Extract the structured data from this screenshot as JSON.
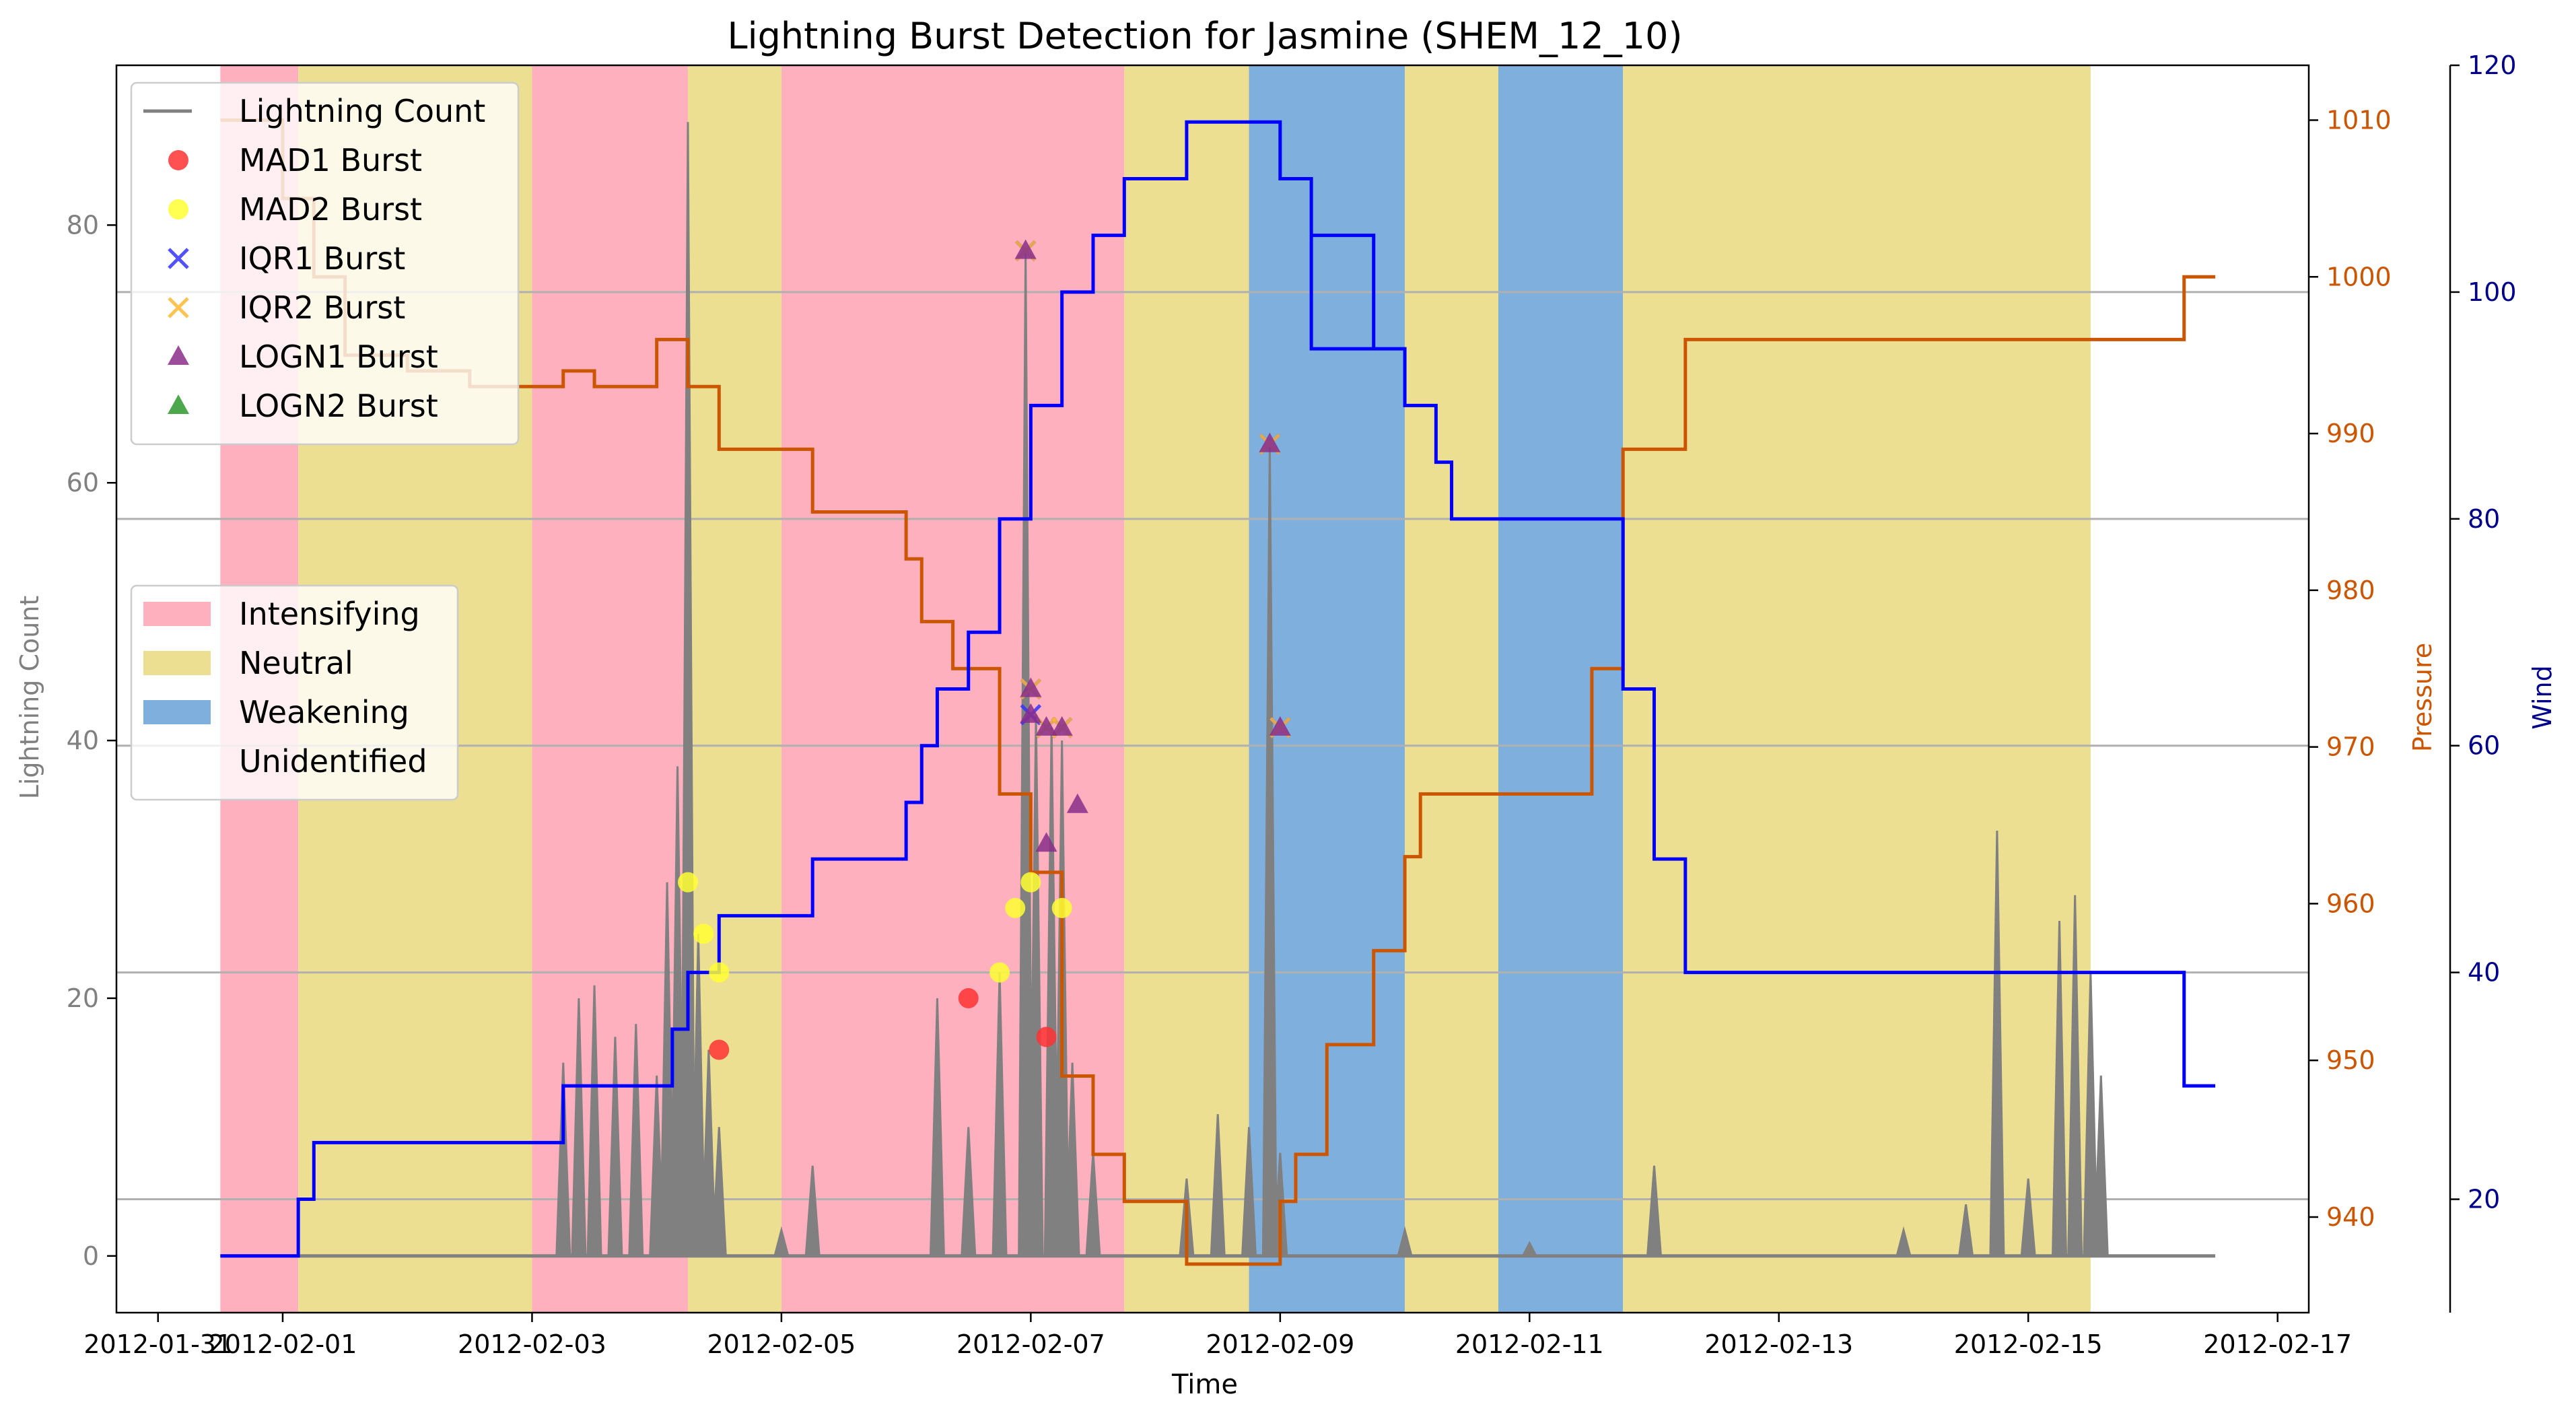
{
  "chart_data": {
    "type": "line",
    "title": "Lightning Burst Detection for Jasmine (SHEM_12_10)",
    "xlabel": "Time",
    "ylabel": "Lightning Count",
    "ylabel_right1": "Pressure",
    "ylabel_right2": "Wind",
    "x_range": [
      "2012-01-30T16:00",
      "2012-02-17T06:00"
    ],
    "x_ticks": [
      "2012-01-31",
      "2012-02-01",
      "2012-02-03",
      "2012-02-05",
      "2012-02-07",
      "2012-02-09",
      "2012-02-11",
      "2012-02-13",
      "2012-02-15",
      "2012-02-17"
    ],
    "x_tick_labels": [
      "2012-01-31",
      "2012-02-01",
      "2012-02-03",
      "2012-02-05",
      "2012-02-07",
      "2012-02-09",
      "2012-02-11",
      "2012-02-13",
      "2012-02-15",
      "2012-02-17"
    ],
    "ylim_left": [
      -4.4,
      92.4
    ],
    "yticks_left": [
      0,
      20,
      40,
      60,
      80
    ],
    "ylim_pressure": [
      933.9,
      1013.5
    ],
    "yticks_pressure": [
      940,
      950,
      960,
      970,
      980,
      990,
      1000,
      1010
    ],
    "ylim_wind": [
      10,
      120
    ],
    "yticks_wind": [
      20,
      40,
      60,
      80,
      100,
      120
    ],
    "colors": {
      "lightning": "#808080",
      "pressure": "#cc5500",
      "wind": "#0000ff",
      "intensifying": "#ffb0bf",
      "neutral": "#eddf92",
      "weakening": "#7fb0dd",
      "mad1": "#ff3333",
      "mad2": "#ffff33",
      "iqr1": "#3333ff",
      "iqr2": "#ffb833",
      "logn1": "#8a2e8a",
      "logn2": "#2e992e",
      "left_axis_text": "#808080",
      "pressure_axis_text": "#cc5500",
      "wind_axis_text": "#00008b",
      "grid": "#b0b0b0"
    },
    "legend_top": {
      "placement": "upper-left",
      "entries": [
        {
          "label": "Lightning Count",
          "marker": "line",
          "color_key": "lightning"
        },
        {
          "label": "MAD1 Burst",
          "marker": "circle",
          "color_key": "mad1"
        },
        {
          "label": "MAD2 Burst",
          "marker": "circle",
          "color_key": "mad2"
        },
        {
          "label": "IQR1 Burst",
          "marker": "x",
          "color_key": "iqr1"
        },
        {
          "label": "IQR2 Burst",
          "marker": "x",
          "color_key": "iqr2"
        },
        {
          "label": "LOGN1 Burst",
          "marker": "triangle",
          "color_key": "logn1"
        },
        {
          "label": "LOGN2 Burst",
          "marker": "triangle",
          "color_key": "logn2"
        }
      ]
    },
    "legend_phase": {
      "placement": "center-left",
      "entries": [
        {
          "label": "Intensifying",
          "color_key": "intensifying"
        },
        {
          "label": "Neutral",
          "color_key": "neutral"
        },
        {
          "label": "Weakening",
          "color_key": "weakening"
        },
        {
          "label": "Unidentified",
          "color_key": ""
        }
      ]
    },
    "phases": [
      {
        "phase": "intensifying",
        "start": "2012-01-31T12:00",
        "end": "2012-02-01T03:00"
      },
      {
        "phase": "neutral",
        "start": "2012-02-01T03:00",
        "end": "2012-02-03T00:00"
      },
      {
        "phase": "intensifying",
        "start": "2012-02-03T00:00",
        "end": "2012-02-04T06:00"
      },
      {
        "phase": "neutral",
        "start": "2012-02-04T06:00",
        "end": "2012-02-05T00:00"
      },
      {
        "phase": "intensifying",
        "start": "2012-02-05T00:00",
        "end": "2012-02-07T18:00"
      },
      {
        "phase": "neutral",
        "start": "2012-02-07T18:00",
        "end": "2012-02-08T18:00"
      },
      {
        "phase": "weakening",
        "start": "2012-02-08T18:00",
        "end": "2012-02-10T00:00"
      },
      {
        "phase": "neutral",
        "start": "2012-02-10T00:00",
        "end": "2012-02-10T18:00"
      },
      {
        "phase": "weakening",
        "start": "2012-02-10T18:00",
        "end": "2012-02-11T18:00"
      },
      {
        "phase": "neutral",
        "start": "2012-02-11T18:00",
        "end": "2012-02-15T12:00"
      }
    ],
    "series": [
      {
        "name": "Pressure",
        "axis": "pressure",
        "color_key": "pressure",
        "points": [
          [
            "2012-01-31T12:00",
            1010
          ],
          [
            "2012-02-01T00:00",
            1005
          ],
          [
            "2012-02-01T06:00",
            1000
          ],
          [
            "2012-02-01T12:00",
            995
          ],
          [
            "2012-02-02T00:00",
            994
          ],
          [
            "2012-02-02T12:00",
            993
          ],
          [
            "2012-02-03T06:00",
            994
          ],
          [
            "2012-02-03T12:00",
            993
          ],
          [
            "2012-02-04T00:00",
            996
          ],
          [
            "2012-02-04T06:00",
            993
          ],
          [
            "2012-02-04T12:00",
            989
          ],
          [
            "2012-02-05T06:00",
            985
          ],
          [
            "2012-02-06T00:00",
            982
          ],
          [
            "2012-02-06T03:00",
            978
          ],
          [
            "2012-02-06T09:00",
            975
          ],
          [
            "2012-02-06T18:00",
            967
          ],
          [
            "2012-02-07T00:00",
            962
          ],
          [
            "2012-02-07T06:00",
            949
          ],
          [
            "2012-02-07T12:00",
            944
          ],
          [
            "2012-02-07T18:00",
            941
          ],
          [
            "2012-02-08T06:00",
            937
          ],
          [
            "2012-02-08T21:00",
            937
          ],
          [
            "2012-02-09T00:00",
            941
          ],
          [
            "2012-02-09T03:00",
            944
          ],
          [
            "2012-02-09T09:00",
            951
          ],
          [
            "2012-02-09T18:00",
            957
          ],
          [
            "2012-02-10T00:00",
            963
          ],
          [
            "2012-02-10T03:00",
            967
          ],
          [
            "2012-02-10T12:00",
            967
          ],
          [
            "2012-02-11T12:00",
            975
          ],
          [
            "2012-02-11T18:00",
            989
          ],
          [
            "2012-02-12T06:00",
            996
          ],
          [
            "2012-02-16T06:00",
            1000
          ]
        ],
        "end": "2012-02-16T12:00"
      },
      {
        "name": "Wind",
        "axis": "wind",
        "color_key": "wind",
        "points": [
          [
            "2012-01-31T12:00",
            15
          ],
          [
            "2012-02-01T03:00",
            20
          ],
          [
            "2012-02-01T06:00",
            25
          ],
          [
            "2012-02-03T06:00",
            30
          ],
          [
            "2012-02-04T03:00",
            35
          ],
          [
            "2012-02-04T06:00",
            40
          ],
          [
            "2012-02-04T12:00",
            45
          ],
          [
            "2012-02-05T06:00",
            50
          ],
          [
            "2012-02-06T00:00",
            55
          ],
          [
            "2012-02-06T03:00",
            60
          ],
          [
            "2012-02-06T06:00",
            65
          ],
          [
            "2012-02-06T12:00",
            70
          ],
          [
            "2012-02-06T18:00",
            80
          ],
          [
            "2012-02-07T00:00",
            90
          ],
          [
            "2012-02-07T06:00",
            100
          ],
          [
            "2012-02-07T12:00",
            105
          ],
          [
            "2012-02-07T18:00",
            110
          ],
          [
            "2012-02-08T06:00",
            115
          ],
          [
            "2012-02-09T00:00",
            110
          ],
          [
            "2012-02-09T06:00",
            105
          ],
          [
            "2012-02-09T18:00",
            95
          ],
          [
            "2012-02-09T06:00",
            105
          ],
          [
            "2012-02-09T18:00",
            95
          ],
          [
            "2012-02-10T00:00",
            90
          ],
          [
            "2012-02-10T06:00",
            85
          ],
          [
            "2012-02-10T09:00",
            80
          ],
          [
            "2012-02-11T18:00",
            65
          ],
          [
            "2012-02-11T18:00",
            65
          ],
          [
            "2012-02-12T00:00",
            50
          ],
          [
            "2012-02-12T06:00",
            40
          ],
          [
            "2012-02-16T06:00",
            30
          ]
        ],
        "end": "2012-02-16T12:00"
      }
    ],
    "lightning_spikes": [
      [
        "2012-02-03T06:00",
        15
      ],
      [
        "2012-02-03T09:00",
        20
      ],
      [
        "2012-02-03T12:00",
        21
      ],
      [
        "2012-02-03T16:00",
        17
      ],
      [
        "2012-02-03T20:00",
        18
      ],
      [
        "2012-02-04T00:00",
        14
      ],
      [
        "2012-02-04T02:00",
        29
      ],
      [
        "2012-02-04T04:00",
        38
      ],
      [
        "2012-02-04T06:00",
        88
      ],
      [
        "2012-02-04T08:00",
        25
      ],
      [
        "2012-02-04T10:00",
        16
      ],
      [
        "2012-02-04T12:00",
        10
      ],
      [
        "2012-02-05T00:00",
        2
      ],
      [
        "2012-02-05T06:00",
        7
      ],
      [
        "2012-02-06T06:00",
        20
      ],
      [
        "2012-02-06T12:00",
        10
      ],
      [
        "2012-02-06T18:00",
        22
      ],
      [
        "2012-02-06T23:00",
        78
      ],
      [
        "2012-02-07T01:00",
        42
      ],
      [
        "2012-02-07T04:00",
        41
      ],
      [
        "2012-02-07T06:00",
        40
      ],
      [
        "2012-02-07T08:00",
        15
      ],
      [
        "2012-02-07T12:00",
        8
      ],
      [
        "2012-02-08T06:00",
        6
      ],
      [
        "2012-02-08T12:00",
        11
      ],
      [
        "2012-02-08T18:00",
        10
      ],
      [
        "2012-02-08T22:00",
        63
      ],
      [
        "2012-02-09T00:00",
        8
      ],
      [
        "2012-02-10T00:00",
        2
      ],
      [
        "2012-02-11T00:00",
        1
      ],
      [
        "2012-02-12T00:00",
        7
      ],
      [
        "2012-02-14T00:00",
        2
      ],
      [
        "2012-02-14T12:00",
        4
      ],
      [
        "2012-02-14T18:00",
        33
      ],
      [
        "2012-02-15T00:00",
        6
      ],
      [
        "2012-02-15T06:00",
        26
      ],
      [
        "2012-02-15T09:00",
        28
      ],
      [
        "2012-02-15T12:00",
        22
      ],
      [
        "2012-02-15T14:00",
        14
      ]
    ],
    "bursts": {
      "mad1": [
        [
          "2012-02-04T12:00",
          16
        ],
        [
          "2012-02-06T12:00",
          20
        ],
        [
          "2012-02-07T03:00",
          17
        ]
      ],
      "mad2": [
        [
          "2012-02-04T06:00",
          29
        ],
        [
          "2012-02-04T09:00",
          25
        ],
        [
          "2012-02-04T12:00",
          22
        ],
        [
          "2012-02-06T18:00",
          22
        ],
        [
          "2012-02-06T21:00",
          27
        ],
        [
          "2012-02-07T00:00",
          29
        ],
        [
          "2012-02-07T06:00",
          27
        ]
      ],
      "iqr1": [
        [
          "2012-02-06T23:00",
          78
        ],
        [
          "2012-02-07T00:00",
          44
        ],
        [
          "2012-02-07T00:00",
          42
        ],
        [
          "2012-02-07T03:00",
          41
        ],
        [
          "2012-02-07T06:00",
          41
        ],
        [
          "2012-02-08T22:00",
          63
        ],
        [
          "2012-02-09T00:00",
          41
        ]
      ],
      "iqr2": [
        [
          "2012-02-06T23:00",
          78
        ],
        [
          "2012-02-07T00:00",
          44
        ],
        [
          "2012-02-07T03:00",
          41
        ],
        [
          "2012-02-07T06:00",
          41
        ],
        [
          "2012-02-08T22:00",
          63
        ],
        [
          "2012-02-09T00:00",
          41
        ]
      ],
      "logn1": [
        [
          "2012-02-06T23:00",
          78
        ],
        [
          "2012-02-07T00:00",
          44
        ],
        [
          "2012-02-07T00:00",
          42
        ],
        [
          "2012-02-07T03:00",
          32
        ],
        [
          "2012-02-07T03:00",
          41
        ],
        [
          "2012-02-07T06:00",
          41
        ],
        [
          "2012-02-07T09:00",
          35
        ],
        [
          "2012-02-08T22:00",
          63
        ],
        [
          "2012-02-09T00:00",
          41
        ]
      ],
      "logn2": []
    }
  }
}
